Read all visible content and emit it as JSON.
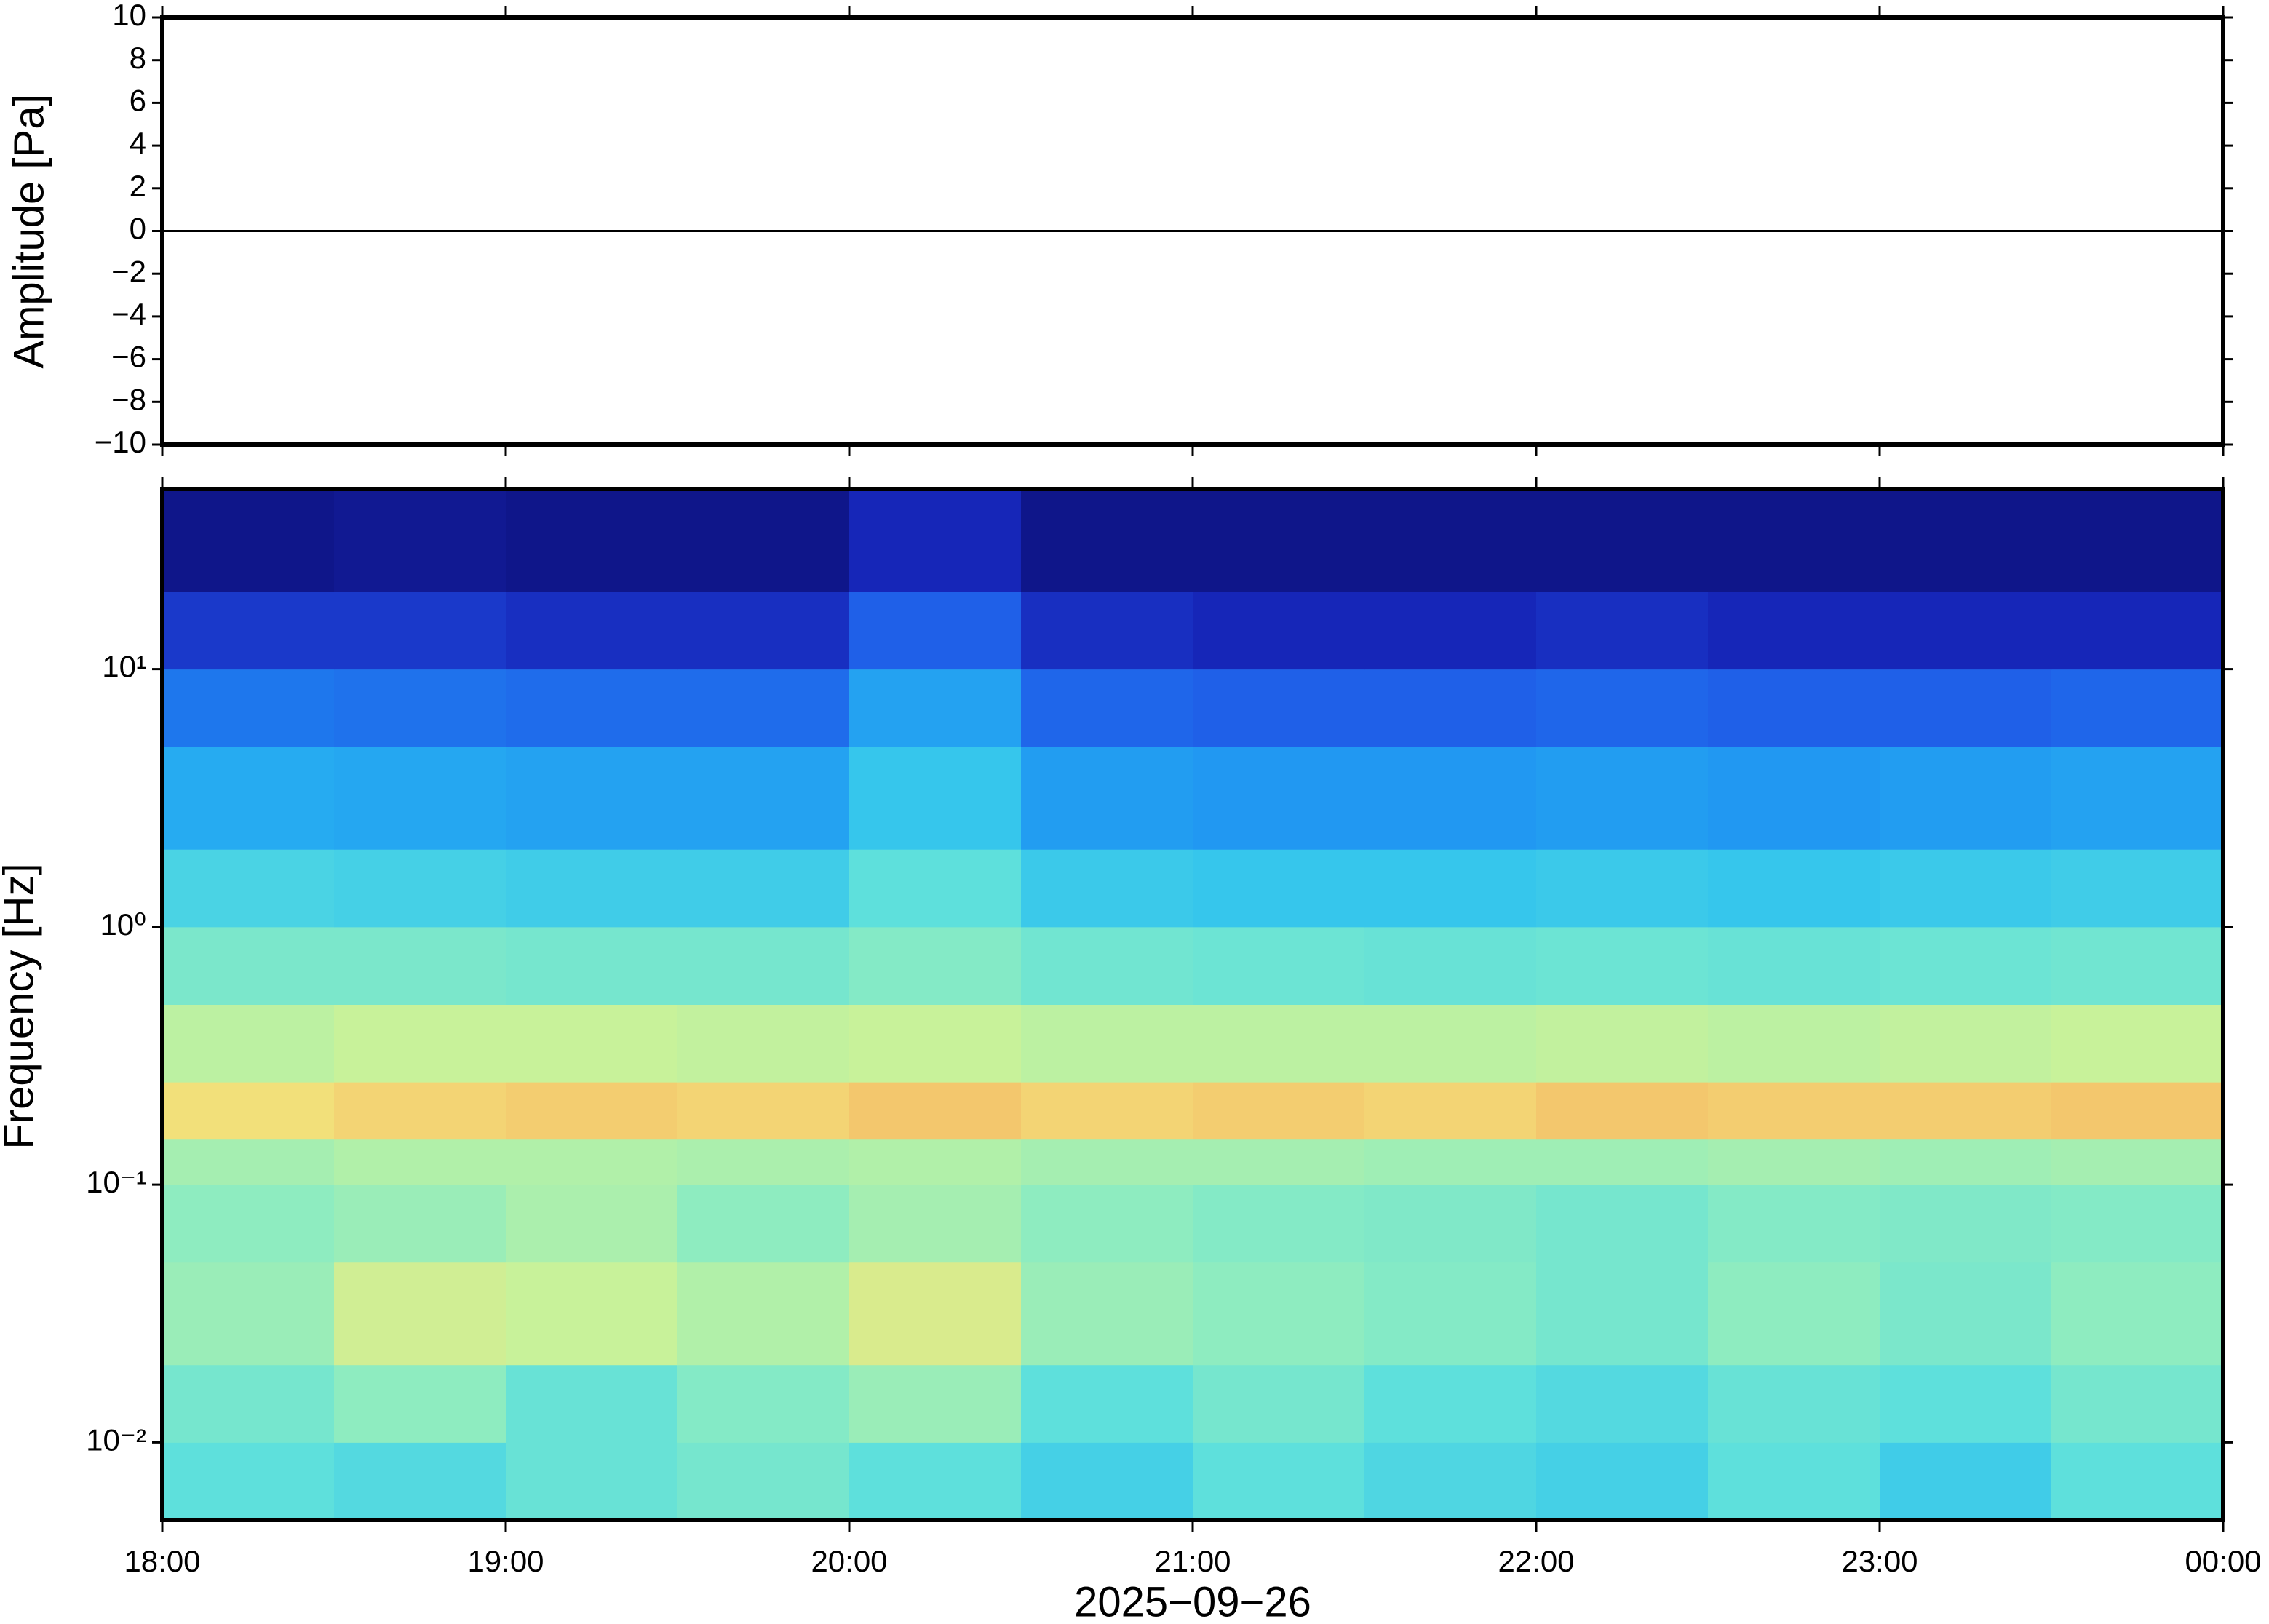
{
  "chart_data": [
    {
      "type": "line",
      "y_label": "Amplitude [Pa]",
      "x": [
        0,
        360
      ],
      "series": [
        {
          "color": "#000000",
          "values": [
            0,
            0
          ]
        }
      ],
      "xlim": [
        0,
        360
      ],
      "ylim": [
        -10,
        10
      ],
      "yticks": [
        {
          "value": -10,
          "label": "−10"
        },
        {
          "value": -8,
          "label": "−8"
        },
        {
          "value": -6,
          "label": "−6"
        },
        {
          "value": -4,
          "label": "−4"
        },
        {
          "value": -2,
          "label": "−2"
        },
        0,
        2,
        4,
        6,
        8,
        10
      ]
    },
    {
      "type": "heatmap",
      "y_label": "Frequency [Hz]",
      "x_label": "2025−09−26",
      "xlim": [
        0,
        360
      ],
      "xticks": [
        {
          "value": 0,
          "label": "18:00"
        },
        {
          "value": 60,
          "label": "19:00"
        },
        {
          "value": 120,
          "label": "20:00"
        },
        {
          "value": 180,
          "label": "21:00"
        },
        {
          "value": 240,
          "label": "22:00"
        },
        {
          "value": 300,
          "label": "23:00"
        },
        {
          "value": 360,
          "label": "00:00"
        }
      ],
      "ylim": [
        0.005,
        50
      ],
      "log_y": true,
      "yticks": [
        {
          "value": 0.01,
          "label": "10⁻²"
        },
        {
          "value": 0.1,
          "label": "10⁻¹"
        },
        {
          "value": 1,
          "label": "10⁰"
        },
        {
          "value": 10,
          "label": "10¹"
        }
      ],
      "x_edges": [
        0,
        30,
        60,
        90,
        120,
        150,
        180,
        210,
        240,
        270,
        300,
        330,
        360
      ],
      "y_edges": [
        0.005,
        0.01,
        0.02,
        0.05,
        0.1,
        0.15,
        0.25,
        0.5,
        1,
        2,
        5,
        10,
        20,
        50
      ],
      "zlim": [
        0,
        1
      ],
      "colors": [
        "#0b0b6b",
        "#1626b8",
        "#1f55e6",
        "#1e8ef2",
        "#2cbff0",
        "#5ee0dc",
        "#8eecc0",
        "#c8f29a",
        "#f2e07a",
        "#f5a25a",
        "#e05a3c"
      ],
      "z": [
        [
          0.5,
          0.48,
          0.52,
          0.55,
          0.5,
          0.45,
          0.5,
          0.47,
          0.45,
          0.5,
          0.44,
          0.5
        ],
        [
          0.55,
          0.6,
          0.52,
          0.58,
          0.62,
          0.5,
          0.55,
          0.5,
          0.48,
          0.52,
          0.5,
          0.55
        ],
        [
          0.62,
          0.72,
          0.7,
          0.66,
          0.74,
          0.62,
          0.6,
          0.58,
          0.55,
          0.6,
          0.56,
          0.6
        ],
        [
          0.6,
          0.62,
          0.65,
          0.6,
          0.64,
          0.6,
          0.58,
          0.57,
          0.55,
          0.58,
          0.57,
          0.58
        ],
        [
          0.64,
          0.66,
          0.66,
          0.65,
          0.66,
          0.64,
          0.64,
          0.63,
          0.63,
          0.64,
          0.63,
          0.64
        ],
        [
          0.8,
          0.82,
          0.83,
          0.82,
          0.84,
          0.82,
          0.83,
          0.82,
          0.84,
          0.83,
          0.83,
          0.84
        ],
        [
          0.68,
          0.7,
          0.7,
          0.69,
          0.7,
          0.68,
          0.68,
          0.68,
          0.69,
          0.68,
          0.69,
          0.7
        ],
        [
          0.56,
          0.56,
          0.55,
          0.55,
          0.58,
          0.54,
          0.53,
          0.52,
          0.53,
          0.52,
          0.53,
          0.54
        ],
        [
          0.46,
          0.45,
          0.44,
          0.44,
          0.5,
          0.43,
          0.42,
          0.42,
          0.43,
          0.42,
          0.43,
          0.44
        ],
        [
          0.36,
          0.35,
          0.34,
          0.34,
          0.42,
          0.33,
          0.32,
          0.32,
          0.33,
          0.32,
          0.33,
          0.34
        ],
        [
          0.26,
          0.25,
          0.24,
          0.24,
          0.34,
          0.23,
          0.22,
          0.22,
          0.23,
          0.22,
          0.22,
          0.23
        ],
        [
          0.14,
          0.14,
          0.12,
          0.12,
          0.22,
          0.12,
          0.1,
          0.1,
          0.12,
          0.1,
          0.1,
          0.1
        ],
        [
          0.04,
          0.05,
          0.04,
          0.04,
          0.1,
          0.04,
          0.04,
          0.04,
          0.04,
          0.04,
          0.04,
          0.04
        ]
      ]
    }
  ]
}
